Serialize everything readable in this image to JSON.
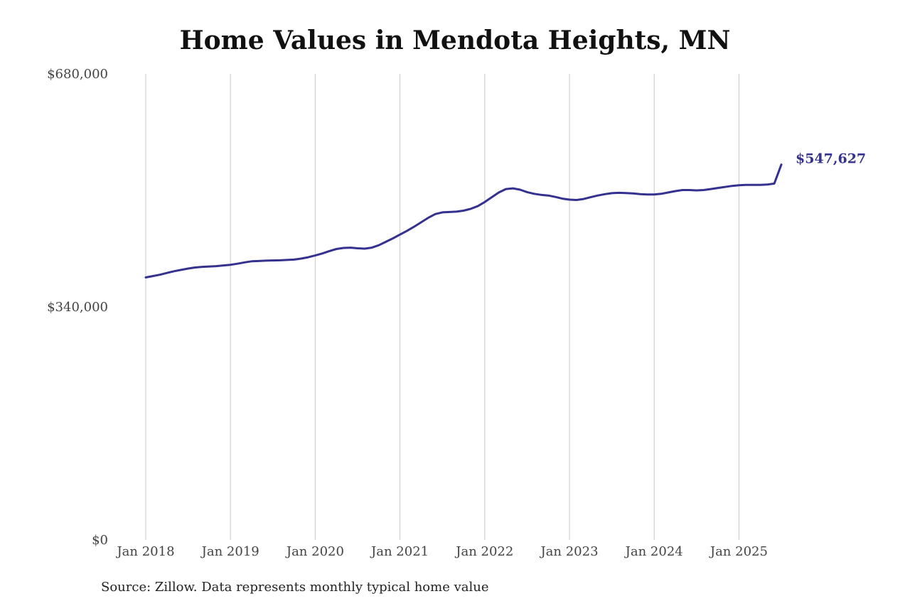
{
  "chart_data": {
    "type": "line",
    "title": "Home Values in Mendota Heights, MN",
    "xlabel": "",
    "ylabel": "",
    "ylim": [
      0,
      680000
    ],
    "y_ticks": [
      {
        "value": 0,
        "label": "$0"
      },
      {
        "value": 340000,
        "label": "$340,000"
      },
      {
        "value": 680000,
        "label": "$680,000"
      }
    ],
    "x_ticks": [
      "Jan 2018",
      "Jan 2019",
      "Jan 2020",
      "Jan 2021",
      "Jan 2022",
      "Jan 2023",
      "Jan 2024",
      "Jan 2025"
    ],
    "x_range": [
      "2018-01",
      "2025-07"
    ],
    "grid": "vertical",
    "line_color": "#35318f",
    "end_label": "$547,627",
    "series": [
      {
        "points": [
          [
            "2018-01",
            383000
          ],
          [
            "2018-02",
            385000
          ],
          [
            "2018-03",
            387000
          ],
          [
            "2018-04",
            389500
          ],
          [
            "2018-05",
            392000
          ],
          [
            "2018-06",
            394000
          ],
          [
            "2018-07",
            396000
          ],
          [
            "2018-08",
            397500
          ],
          [
            "2018-09",
            398500
          ],
          [
            "2018-10",
            399000
          ],
          [
            "2018-11",
            399500
          ],
          [
            "2018-12",
            400500
          ],
          [
            "2019-01",
            401500
          ],
          [
            "2019-02",
            403000
          ],
          [
            "2019-03",
            405000
          ],
          [
            "2019-04",
            406500
          ],
          [
            "2019-05",
            407000
          ],
          [
            "2019-06",
            407500
          ],
          [
            "2019-07",
            407800
          ],
          [
            "2019-08",
            408000
          ],
          [
            "2019-09",
            408500
          ],
          [
            "2019-10",
            409000
          ],
          [
            "2019-11",
            410500
          ],
          [
            "2019-12",
            412500
          ],
          [
            "2020-01",
            415000
          ],
          [
            "2020-02",
            418000
          ],
          [
            "2020-03",
            421500
          ],
          [
            "2020-04",
            424500
          ],
          [
            "2020-05",
            426000
          ],
          [
            "2020-06",
            426500
          ],
          [
            "2020-07",
            425500
          ],
          [
            "2020-08",
            425000
          ],
          [
            "2020-09",
            426500
          ],
          [
            "2020-10",
            430000
          ],
          [
            "2020-11",
            435000
          ],
          [
            "2020-12",
            440000
          ],
          [
            "2021-01",
            445500
          ],
          [
            "2021-02",
            451000
          ],
          [
            "2021-03",
            457000
          ],
          [
            "2021-04",
            463500
          ],
          [
            "2021-05",
            470000
          ],
          [
            "2021-06",
            475500
          ],
          [
            "2021-07",
            478000
          ],
          [
            "2021-08",
            478500
          ],
          [
            "2021-09",
            479000
          ],
          [
            "2021-10",
            480500
          ],
          [
            "2021-11",
            483000
          ],
          [
            "2021-12",
            487000
          ],
          [
            "2022-01",
            493000
          ],
          [
            "2022-02",
            500000
          ],
          [
            "2022-03",
            507000
          ],
          [
            "2022-04",
            512000
          ],
          [
            "2022-05",
            513000
          ],
          [
            "2022-06",
            511000
          ],
          [
            "2022-07",
            507500
          ],
          [
            "2022-08",
            505000
          ],
          [
            "2022-09",
            503500
          ],
          [
            "2022-10",
            502500
          ],
          [
            "2022-11",
            500500
          ],
          [
            "2022-12",
            498000
          ],
          [
            "2023-01",
            496500
          ],
          [
            "2023-02",
            496000
          ],
          [
            "2023-03",
            497500
          ],
          [
            "2023-04",
            500000
          ],
          [
            "2023-05",
            502500
          ],
          [
            "2023-06",
            504500
          ],
          [
            "2023-07",
            506000
          ],
          [
            "2023-08",
            506500
          ],
          [
            "2023-09",
            506200
          ],
          [
            "2023-10",
            505500
          ],
          [
            "2023-11",
            504500
          ],
          [
            "2023-12",
            504000
          ],
          [
            "2024-01",
            504000
          ],
          [
            "2024-02",
            505000
          ],
          [
            "2024-03",
            507000
          ],
          [
            "2024-04",
            509000
          ],
          [
            "2024-05",
            510500
          ],
          [
            "2024-06",
            510500
          ],
          [
            "2024-07",
            510000
          ],
          [
            "2024-08",
            510500
          ],
          [
            "2024-09",
            512000
          ],
          [
            "2024-10",
            513500
          ],
          [
            "2024-11",
            515000
          ],
          [
            "2024-12",
            516500
          ],
          [
            "2025-01",
            517500
          ],
          [
            "2025-02",
            518000
          ],
          [
            "2025-03",
            518000
          ],
          [
            "2025-04",
            518000
          ],
          [
            "2025-05",
            518500
          ],
          [
            "2025-06",
            520000
          ],
          [
            "2025-07",
            547627
          ]
        ]
      }
    ]
  },
  "source_note": "Source: Zillow. Data represents monthly typical home value"
}
